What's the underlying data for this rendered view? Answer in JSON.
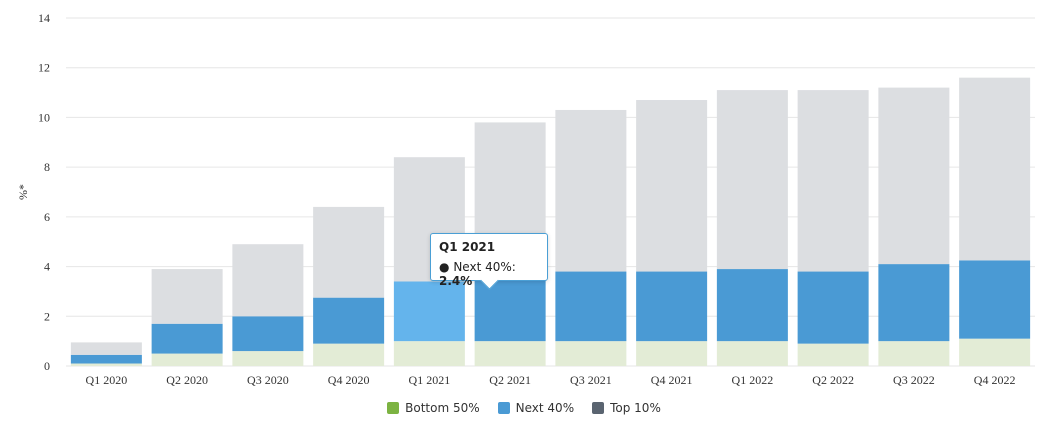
{
  "chart_data": {
    "type": "bar",
    "stacked": true,
    "ylabel": "%*",
    "ylim": [
      0,
      14
    ],
    "yticks": [
      0,
      2,
      4,
      6,
      8,
      10,
      12,
      14
    ],
    "grid": true,
    "legend_position": "bottom-center",
    "categories": [
      "Q1 2020",
      "Q2 2020",
      "Q3 2020",
      "Q4 2020",
      "Q1 2021",
      "Q2 2021",
      "Q3 2021",
      "Q4 2021",
      "Q1 2022",
      "Q2 2022",
      "Q3 2022",
      "Q4 2022"
    ],
    "series": [
      {
        "name": "Bottom 50%",
        "color": "#7cb342",
        "bar_color": "#e3ecd6",
        "values": [
          0.1,
          0.5,
          0.6,
          0.9,
          1.0,
          1.0,
          1.0,
          1.0,
          1.0,
          0.9,
          1.0,
          1.1
        ]
      },
      {
        "name": "Next 40%",
        "color": "#4a9ad4",
        "bar_color": "#4a9ad4",
        "highlight_color": "#64b4ec",
        "values": [
          0.35,
          1.2,
          1.4,
          1.85,
          2.4,
          2.8,
          2.8,
          2.8,
          2.9,
          2.9,
          3.1,
          3.15
        ]
      },
      {
        "name": "Top 10%",
        "color": "#5a6470",
        "bar_color": "#dcdee1",
        "values": [
          0.5,
          2.2,
          2.9,
          3.65,
          5.0,
          6.0,
          6.5,
          6.9,
          7.2,
          7.3,
          7.1,
          7.35
        ]
      }
    ],
    "highlighted": {
      "category_index": 4,
      "series_index": 1
    }
  },
  "tooltip": {
    "title": "Q1 2021",
    "bullet": "●",
    "series_label": "Next 40%:",
    "value": "2.4%"
  }
}
